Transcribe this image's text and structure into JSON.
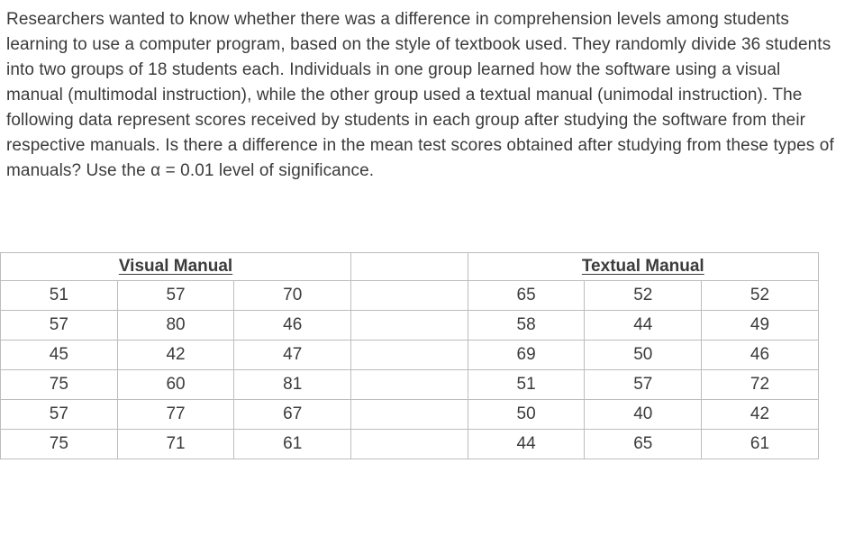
{
  "problem": {
    "paragraph": "Researchers wanted to know whether there was a difference in comprehension levels among students learning to use a computer program, based on the style of textbook used.  They randomly divide 36 students into two groups of 18 students each.  Individuals in one group learned how the software using a visual manual (multimodal instruction), while the other group used a textual manual (unimodal instruction).  The following data represent scores received by students in each group after studying the software from their respective manuals.  Is there a difference in the mean test scores obtained after studying from these types of manuals?  Use the α = 0.01 level of significance."
  },
  "table": {
    "visual_header": "Visual Manual",
    "textual_header": "Textual Manual",
    "visual_rows": [
      [
        51,
        57,
        70
      ],
      [
        57,
        80,
        46
      ],
      [
        45,
        42,
        47
      ],
      [
        75,
        60,
        81
      ],
      [
        57,
        77,
        67
      ],
      [
        75,
        71,
        61
      ]
    ],
    "textual_rows": [
      [
        65,
        52,
        52
      ],
      [
        58,
        44,
        49
      ],
      [
        69,
        50,
        46
      ],
      [
        51,
        57,
        72
      ],
      [
        50,
        40,
        42
      ],
      [
        44,
        65,
        61
      ]
    ]
  }
}
